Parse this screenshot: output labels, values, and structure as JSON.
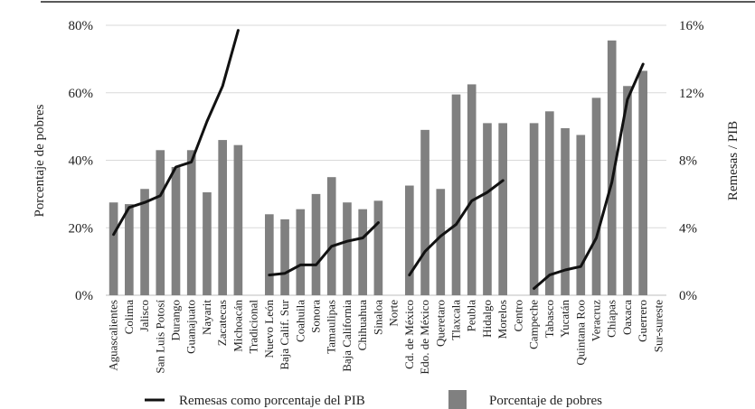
{
  "chart_data": {
    "type": "bar",
    "title": "",
    "ylabel_left": "Porcentaje de pobres",
    "ylabel_right": "Remesas / PIB",
    "ylim_left": [
      0,
      80
    ],
    "ylim_right": [
      0,
      16
    ],
    "yticks_left": [
      "0%",
      "20%",
      "40%",
      "60%",
      "80%"
    ],
    "yticks_right": [
      "0%",
      "4%",
      "8%",
      "12%",
      "16%"
    ],
    "categories": [
      "Aguascalientes",
      "Colima",
      "Jalisco",
      "San Luis Potosí",
      "Durango",
      "Guanajuato",
      "Nayarit",
      "Zacatecas",
      "Michoacán",
      "Tradicional",
      "Nuevo León",
      "Baja Calif. Sur",
      "Coahuila",
      "Sonora",
      "Tamaulipas",
      "Baja California",
      "Chihuahua",
      "Sinaloa",
      "Norte",
      "Cd. de México",
      "Edo. de México",
      "Queretaro",
      "Tlaxcala",
      "Peubla",
      "Hidalgo",
      "Morelos",
      "Centro",
      "Campeche",
      "Tabasco",
      "Yucatán",
      "Quintana Roo",
      "Veracruz",
      "Chiapas",
      "Oaxaca",
      "Guerrero",
      "Sur-sureste"
    ],
    "series": [
      {
        "name": "Porcentaje de pobres",
        "type": "bar",
        "axis": "left",
        "color": "#808080",
        "values": [
          27.5,
          27,
          31.5,
          43,
          38,
          43,
          30.5,
          46,
          44.5,
          null,
          24,
          22.5,
          25.5,
          30,
          35,
          27.5,
          25.5,
          28,
          null,
          32.5,
          49,
          31.5,
          59.5,
          62.5,
          51,
          51,
          null,
          51,
          54.5,
          49.5,
          47.5,
          58.5,
          75.5,
          62,
          66.5,
          null
        ]
      },
      {
        "name": "Remesas como porcentaje del PIB",
        "type": "line",
        "axis": "right",
        "color": "#111111",
        "values": [
          3.6,
          5.2,
          5.5,
          5.9,
          7.6,
          7.9,
          10.3,
          12.4,
          15.7,
          null,
          1.2,
          1.3,
          1.8,
          1.8,
          2.9,
          3.2,
          3.4,
          4.3,
          null,
          1.2,
          2.6,
          3.5,
          4.2,
          5.6,
          6.1,
          6.8,
          null,
          0.4,
          1.2,
          1.5,
          1.7,
          3.4,
          6.7,
          11.6,
          13.7,
          null
        ]
      }
    ],
    "legend": {
      "placement": "bottom",
      "items": [
        {
          "label": "Remesas como porcentaje del PIB",
          "kind": "line"
        },
        {
          "label": "Porcentaje de pobres",
          "kind": "bar"
        }
      ]
    }
  }
}
